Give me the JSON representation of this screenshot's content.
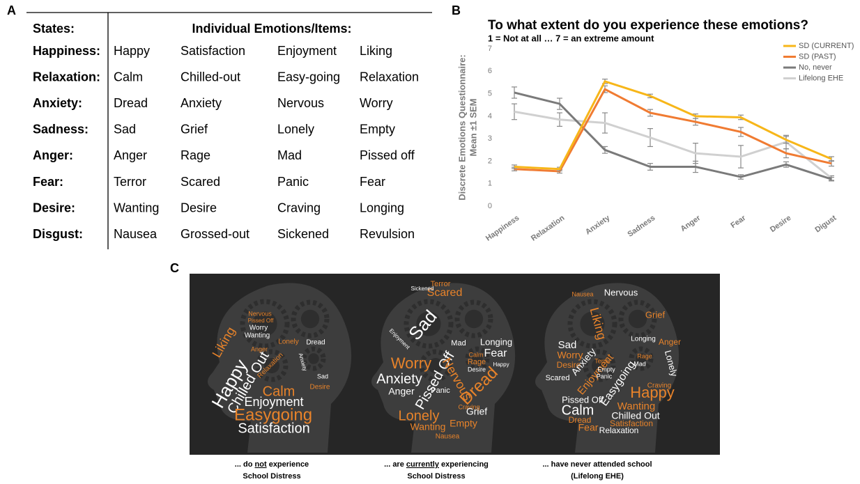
{
  "panel_a": {
    "label": "A",
    "header": [
      "States:",
      "Individual Emotions/Items:"
    ],
    "rows": [
      [
        "Happiness:",
        "Happy",
        "Satisfaction",
        "Enjoyment",
        "Liking"
      ],
      [
        "Relaxation:",
        "Calm",
        "Chilled-out",
        "Easy-going",
        "Relaxation"
      ],
      [
        "Anxiety:",
        "Dread",
        "Anxiety",
        "Nervous",
        "Worry"
      ],
      [
        "Sadness:",
        "Sad",
        "Grief",
        "Lonely",
        "Empty"
      ],
      [
        "Anger:",
        "Anger",
        "Rage",
        "Mad",
        "Pissed off"
      ],
      [
        "Fear:",
        "Terror",
        "Scared",
        "Panic",
        "Fear"
      ],
      [
        "Desire:",
        "Wanting",
        "Desire",
        "Craving",
        "Longing"
      ],
      [
        "Disgust:",
        "Nausea",
        "Grossed-out",
        "Sickened",
        "Revulsion"
      ]
    ]
  },
  "chart_data": {
    "type": "line",
    "panel_label": "B",
    "title": "To what extent do you experience these emotions?",
    "subtitle": "1 = Not at all … 7 = an extreme amount",
    "y_label": [
      "Discrete Emotions Questionnaire:",
      "Mean ±1 SEM"
    ],
    "categories": [
      "Happiness",
      "Relaxation",
      "Anxiety",
      "Sadness",
      "Anger",
      "Fear",
      "Desire",
      "Digust"
    ],
    "ylim": [
      0,
      7
    ],
    "yticks": [
      0,
      1,
      2,
      3,
      4,
      5,
      6,
      7
    ],
    "legend": "top-right",
    "series": [
      {
        "name": "SD (CURRENT)",
        "color": "#f7b619",
        "values": [
          1.75,
          1.65,
          5.55,
          4.9,
          4.0,
          3.95,
          2.95,
          2.1
        ],
        "errors": [
          0.08,
          0.08,
          0.1,
          0.08,
          0.1,
          0.1,
          0.15,
          0.1
        ]
      },
      {
        "name": "SD (PAST)",
        "color": "#f07b32",
        "values": [
          1.65,
          1.55,
          5.2,
          4.15,
          3.75,
          3.3,
          2.35,
          1.9
        ],
        "errors": [
          0.08,
          0.08,
          0.15,
          0.15,
          0.15,
          0.2,
          0.2,
          0.12
        ]
      },
      {
        "name": "No, never",
        "color": "#7a7a7a",
        "values": [
          5.05,
          4.55,
          2.5,
          1.75,
          1.75,
          1.3,
          1.85,
          1.2
        ],
        "errors": [
          0.25,
          0.25,
          0.15,
          0.15,
          0.25,
          0.1,
          0.12,
          0.08
        ]
      },
      {
        "name": "Lifelong EHE",
        "color": "#d0d0d0",
        "values": [
          4.2,
          3.85,
          3.7,
          3.05,
          2.35,
          2.2,
          2.85,
          1.25
        ],
        "errors": [
          0.35,
          0.3,
          0.45,
          0.4,
          0.45,
          0.5,
          0.3,
          0.1
        ]
      }
    ]
  },
  "panel_c": {
    "label": "C",
    "clouds": [
      {
        "words": [
          {
            "text": "Nervous",
            "color": "#e8832a"
          },
          {
            "text": "Pissed Off",
            "color": "#e8832a"
          },
          {
            "text": "Worry",
            "color": "#ffffff"
          },
          {
            "text": "Wanting",
            "color": "#ffffff"
          },
          {
            "text": "Lonely",
            "color": "#e8832a"
          },
          {
            "text": "Dread",
            "color": "#ffffff"
          },
          {
            "text": "Liking",
            "color": "#e8832a"
          },
          {
            "text": "Anger",
            "color": "#e8832a"
          },
          {
            "text": "Anxiety",
            "color": "#ffffff"
          },
          {
            "text": "Happy",
            "color": "#ffffff"
          },
          {
            "text": "Chilled Out",
            "color": "#ffffff"
          },
          {
            "text": "Relaxation",
            "color": "#e8832a"
          },
          {
            "text": "Calm",
            "color": "#e8832a"
          },
          {
            "text": "Sad",
            "color": "#ffffff"
          },
          {
            "text": "Desire",
            "color": "#e8832a"
          },
          {
            "text": "Enjoyment",
            "color": "#ffffff"
          },
          {
            "text": "Easygoing",
            "color": "#e8832a"
          },
          {
            "text": "Satisfaction",
            "color": "#ffffff"
          }
        ],
        "caption": {
          "before": "... do ",
          "underlined": "not",
          "after": " experience",
          "line2": "School Distress"
        }
      },
      {
        "words": [
          {
            "text": "Terror",
            "color": "#e8832a"
          },
          {
            "text": "Scared",
            "color": "#e8832a"
          },
          {
            "text": "Sickened",
            "color": "#ffffff"
          },
          {
            "text": "Sad",
            "color": "#ffffff"
          },
          {
            "text": "Enjoyment",
            "color": "#ffffff"
          },
          {
            "text": "Mad",
            "color": "#ffffff"
          },
          {
            "text": "Longing",
            "color": "#ffffff"
          },
          {
            "text": "Fear",
            "color": "#ffffff"
          },
          {
            "text": "Calm",
            "color": "#e8832a"
          },
          {
            "text": "Rage",
            "color": "#e8832a"
          },
          {
            "text": "Desire",
            "color": "#ffffff"
          },
          {
            "text": "Happy",
            "color": "#ffffff"
          },
          {
            "text": "Worry",
            "color": "#e8832a"
          },
          {
            "text": "Anxiety",
            "color": "#ffffff"
          },
          {
            "text": "Anger",
            "color": "#ffffff"
          },
          {
            "text": "Pissed Off",
            "color": "#ffffff"
          },
          {
            "text": "Nervous",
            "color": "#e8832a"
          },
          {
            "text": "Dread",
            "color": "#e8832a"
          },
          {
            "text": "Panic",
            "color": "#ffffff"
          },
          {
            "text": "Craving",
            "color": "#e8832a"
          },
          {
            "text": "Grief",
            "color": "#ffffff"
          },
          {
            "text": "Lonely",
            "color": "#e8832a"
          },
          {
            "text": "Empty",
            "color": "#e8832a"
          },
          {
            "text": "Wanting",
            "color": "#e8832a"
          },
          {
            "text": "Nausea",
            "color": "#e8832a"
          }
        ],
        "caption": {
          "before": "... are ",
          "underlined": "currently",
          "after": " experiencing",
          "line2": "School Distress"
        }
      },
      {
        "words": [
          {
            "text": "Nausea",
            "color": "#e8832a"
          },
          {
            "text": "Nervous",
            "color": "#ffffff"
          },
          {
            "text": "Liking",
            "color": "#e8832a"
          },
          {
            "text": "Grief",
            "color": "#e8832a"
          },
          {
            "text": "Longing",
            "color": "#ffffff"
          },
          {
            "text": "Anger",
            "color": "#e8832a"
          },
          {
            "text": "Sad",
            "color": "#ffffff"
          },
          {
            "text": "Worry",
            "color": "#e8832a"
          },
          {
            "text": "Desire",
            "color": "#e8832a"
          },
          {
            "text": "Anxiety",
            "color": "#ffffff"
          },
          {
            "text": "Terror",
            "color": "#e8832a"
          },
          {
            "text": "Rage",
            "color": "#e8832a"
          },
          {
            "text": "Mad",
            "color": "#ffffff"
          },
          {
            "text": "Lonely",
            "color": "#ffffff"
          },
          {
            "text": "Enjoyment",
            "color": "#e8832a"
          },
          {
            "text": "Scared",
            "color": "#ffffff"
          },
          {
            "text": "Empty",
            "color": "#ffffff"
          },
          {
            "text": "Panic",
            "color": "#ffffff"
          },
          {
            "text": "Easygoing",
            "color": "#ffffff"
          },
          {
            "text": "Craving",
            "color": "#e8832a"
          },
          {
            "text": "Happy",
            "color": "#e8832a"
          },
          {
            "text": "Pissed Off",
            "color": "#ffffff"
          },
          {
            "text": "Calm",
            "color": "#ffffff"
          },
          {
            "text": "Wanting",
            "color": "#e8832a"
          },
          {
            "text": "Chilled Out",
            "color": "#ffffff"
          },
          {
            "text": "Dread",
            "color": "#e8832a"
          },
          {
            "text": "Satisfaction",
            "color": "#e8832a"
          },
          {
            "text": "Fear",
            "color": "#e8832a"
          },
          {
            "text": "Relaxation",
            "color": "#ffffff"
          }
        ],
        "caption": {
          "before": "... have never attended school",
          "line2": "(Lifelong EHE)"
        }
      }
    ]
  }
}
